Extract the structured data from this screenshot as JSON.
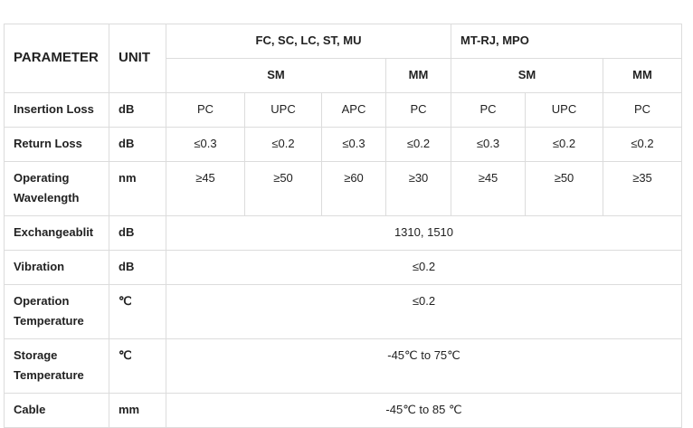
{
  "table": {
    "header": {
      "parameter": "PARAMETER",
      "unit": "UNIT",
      "groups": [
        "FC, SC, LC, ST, MU",
        "MT-RJ, MPO"
      ],
      "subgroups": [
        "SM",
        "MM",
        "SM",
        "MM"
      ]
    },
    "rows": [
      [
        "Insertion Loss",
        "dB",
        "PC",
        "UPC",
        "APC",
        "PC",
        "PC",
        "UPC",
        "PC"
      ],
      [
        "Return Loss",
        "dB",
        "≤0.3",
        "≤0.2",
        "≤0.3",
        "≤0.2",
        "≤0.3",
        "≤0.2",
        "≤0.2"
      ],
      [
        "Operating Wavelength",
        "nm",
        "≥45",
        "≥50",
        "≥60",
        "≥30",
        "≥45",
        "≥50",
        "≥35"
      ],
      [
        "Exchangeablit",
        "dB",
        "1310, 1510"
      ],
      [
        "Vibration",
        "dB",
        "≤0.2"
      ],
      [
        "Operation Temperature",
        "℃",
        "≤0.2"
      ],
      [
        "Storage Temperature",
        "℃",
        "-45℃ to 75℃"
      ],
      [
        "Cable",
        "mm",
        "-45℃ to 85 ℃"
      ]
    ]
  }
}
